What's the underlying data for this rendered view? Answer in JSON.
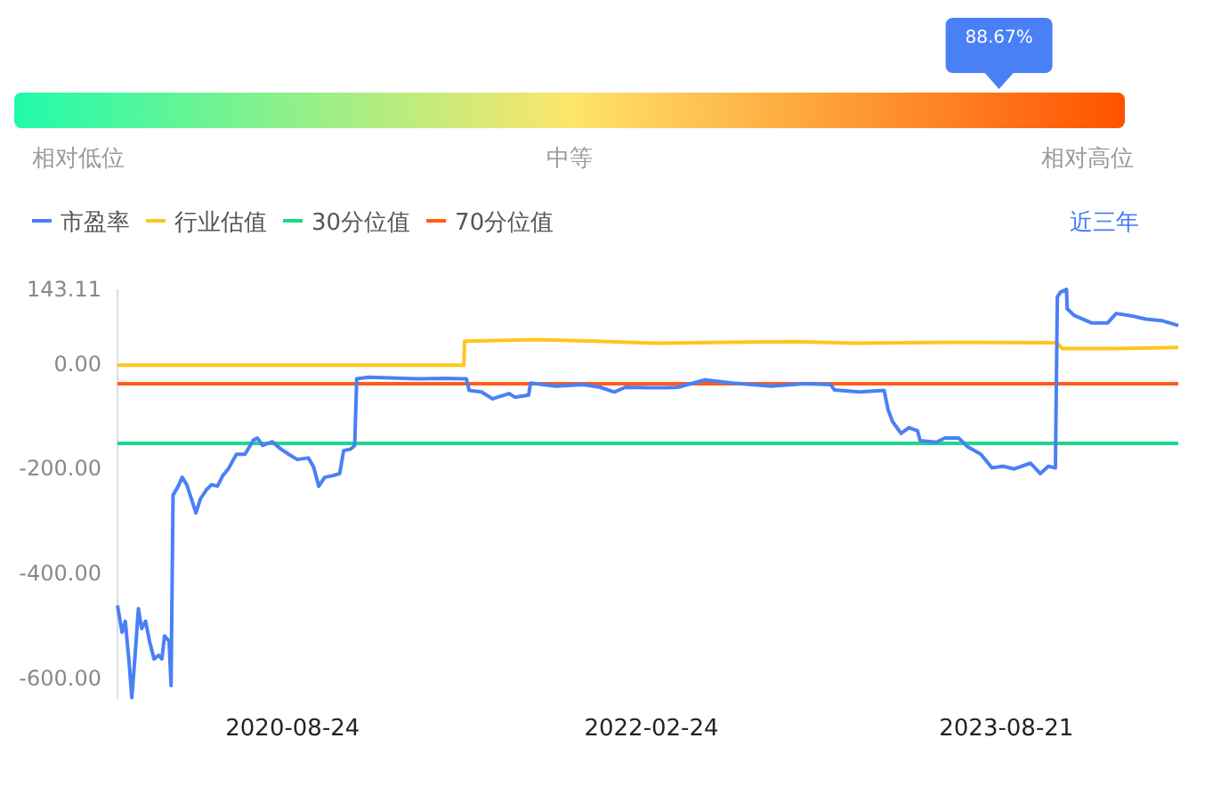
{
  "chart_data": [
    {
      "type": "other",
      "annotations": [
        "相对低位",
        "中等",
        "相对高位"
      ],
      "values": [
        88.67
      ],
      "value_labels": [
        "88.67%"
      ],
      "color": "#4a80f6"
    },
    {
      "type": "line",
      "legend": "top left",
      "grid": false,
      "marker": "none",
      "line_style": "solid",
      "annotations": [
        "近三年"
      ],
      "xlim": [
        "2019-11-30",
        "2024-05-10"
      ],
      "xticks": [
        "2020-08-24",
        "2022-02-24",
        "2023-08-21"
      ],
      "ylim": [
        -640,
        143.11
      ],
      "yticks": [
        {
          "value": 143.11,
          "label": "143.11"
        },
        {
          "value": 0,
          "label": "0.00"
        },
        {
          "value": -200,
          "label": "-200.00"
        },
        {
          "value": -400,
          "label": "-400.00"
        },
        {
          "value": -600,
          "label": "-600.00"
        }
      ],
      "series": [
        {
          "name": "市盈率",
          "color": "#4a80f6",
          "x": [
            "2019-11-30",
            "2019-12-07",
            "2019-12-12",
            "2019-12-18",
            "2019-12-22",
            "2019-12-27",
            "2020-01-01",
            "2020-01-06",
            "2020-01-12",
            "2020-01-18",
            "2020-01-25",
            "2020-02-01",
            "2020-02-06",
            "2020-02-10",
            "2020-02-17",
            "2020-02-20",
            "2020-02-23",
            "2020-03-02",
            "2020-03-08",
            "2020-03-15",
            "2020-03-22",
            "2020-03-29",
            "2020-04-05",
            "2020-04-14",
            "2020-04-22",
            "2020-05-01",
            "2020-05-09",
            "2020-05-18",
            "2020-05-30",
            "2020-06-12",
            "2020-06-25",
            "2020-07-01",
            "2020-07-09",
            "2020-07-24",
            "2020-08-06",
            "2020-08-18",
            "2020-08-31",
            "2020-09-17",
            "2020-09-25",
            "2020-10-03",
            "2020-10-12",
            "2020-10-24",
            "2020-11-04",
            "2020-11-10",
            "2020-11-21",
            "2020-11-27",
            "2020-11-30",
            "2020-12-18",
            "2021-01-21",
            "2021-03-04",
            "2021-04-15",
            "2021-05-17",
            "2021-05-21",
            "2021-06-09",
            "2021-06-26",
            "2021-07-21",
            "2021-07-30",
            "2021-08-20",
            "2021-08-23",
            "2021-10-01",
            "2021-11-12",
            "2021-12-08",
            "2021-12-29",
            "2022-01-15",
            "2022-02-22",
            "2022-03-19",
            "2022-04-05",
            "2022-05-17",
            "2022-06-28",
            "2022-08-26",
            "2022-10-16",
            "2022-11-25",
            "2022-12-01",
            "2023-01-08",
            "2023-02-15",
            "2023-02-21",
            "2023-02-28",
            "2023-03-13",
            "2023-03-25",
            "2023-04-07",
            "2023-04-11",
            "2023-05-06",
            "2023-05-19",
            "2023-06-09",
            "2023-06-22",
            "2023-07-13",
            "2023-07-30",
            "2023-08-16",
            "2023-09-02",
            "2023-09-27",
            "2023-10-12",
            "2023-10-24",
            "2023-11-04",
            "2023-11-07",
            "2023-11-12",
            "2023-11-21",
            "2023-11-22",
            "2023-12-03",
            "2023-12-29",
            "2024-01-23",
            "2024-02-05",
            "2024-02-26",
            "2024-03-22",
            "2024-04-16",
            "2024-05-10"
          ],
          "values": [
            -461,
            -512,
            -491,
            -573,
            -637,
            -556,
            -467,
            -505,
            -491,
            -529,
            -563,
            -556,
            -563,
            -519,
            -529,
            -614,
            -250,
            -233,
            -216,
            -230,
            -257,
            -284,
            -257,
            -240,
            -230,
            -233,
            -213,
            -199,
            -172,
            -172,
            -145,
            -141,
            -155,
            -148,
            -162,
            -172,
            -182,
            -179,
            -196,
            -233,
            -216,
            -213,
            -209,
            -165,
            -162,
            -155,
            -28,
            -25,
            -26,
            -28,
            -27,
            -28,
            -50,
            -53,
            -66,
            -56,
            -63,
            -59,
            -36,
            -42,
            -39,
            -44,
            -53,
            -44,
            -45,
            -45,
            -44,
            -30,
            -36,
            -42,
            -37,
            -39,
            -49,
            -53,
            -50,
            -87,
            -110,
            -132,
            -121,
            -127,
            -146,
            -149,
            -141,
            -141,
            -157,
            -172,
            -198,
            -195,
            -200,
            -189,
            -209,
            -195,
            -198,
            129,
            138,
            143,
            106,
            93,
            79,
            79,
            97,
            93,
            86,
            83,
            74
          ]
        },
        {
          "name": "行业估值",
          "color": "#ffc619",
          "x": [
            "2019-11-30",
            "2021-05-13",
            "2021-05-14",
            "2021-09-01",
            "2021-12-01",
            "2022-03-01",
            "2022-06-15",
            "2022-10-01",
            "2023-01-01",
            "2023-06-01",
            "2023-11-07",
            "2023-11-14",
            "2024-02-01",
            "2024-05-10"
          ],
          "values": [
            -2,
            -2,
            44,
            47,
            44,
            40,
            42,
            43,
            40,
            42,
            41,
            30,
            30,
            32
          ]
        },
        {
          "name": "30分位值",
          "color": "#1ad98b",
          "x": [
            "2019-11-30",
            "2024-05-10"
          ],
          "values": [
            -151,
            -151
          ]
        },
        {
          "name": "70分位值",
          "color": "#ff5d1a",
          "x": [
            "2019-11-30",
            "2024-05-10"
          ],
          "values": [
            -37,
            -37
          ]
        }
      ]
    }
  ]
}
